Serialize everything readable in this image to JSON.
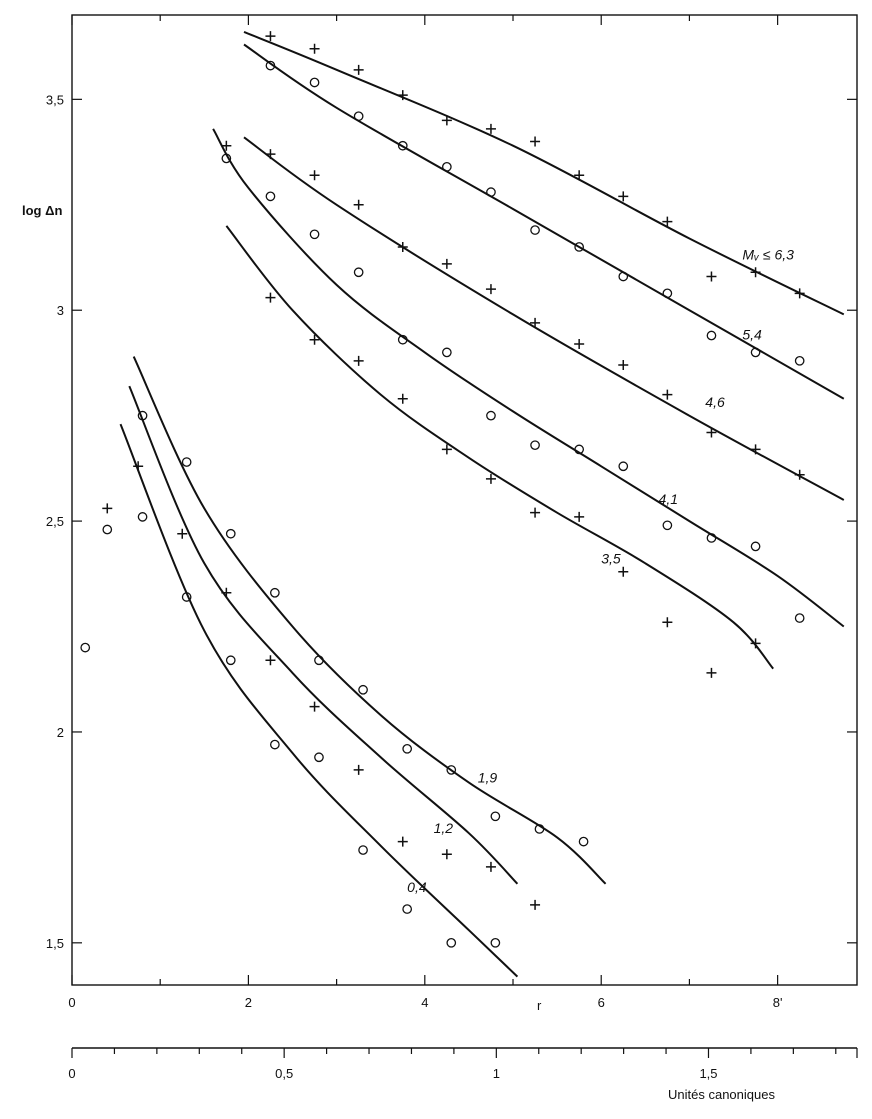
{
  "chart_data": {
    "type": "scatter",
    "title": "",
    "ylabel": "log Δn",
    "xlabel": "r",
    "secondary_xlabel": "Unités canoniques",
    "xlim": [
      0,
      8.9
    ],
    "ylim": [
      1.4,
      3.7
    ],
    "grid": false,
    "x_ticks": [
      {
        "value": 0,
        "label": "0"
      },
      {
        "value": 2,
        "label": "2"
      },
      {
        "value": 4,
        "label": "4"
      },
      {
        "value": 6,
        "label": "6"
      },
      {
        "value": 8,
        "label": "8'"
      }
    ],
    "y_ticks": [
      {
        "value": 1.5,
        "label": "1,5"
      },
      {
        "value": 2,
        "label": "2"
      },
      {
        "value": 2.5,
        "label": "2,5"
      },
      {
        "value": 3,
        "label": "3"
      },
      {
        "value": 3.5,
        "label": "3,5"
      }
    ],
    "secondary_axis": {
      "lim": [
        0,
        1.85
      ],
      "ticks": [
        {
          "value": 0,
          "label": "0"
        },
        {
          "value": 0.5,
          "label": "0,5"
        },
        {
          "value": 1,
          "label": "1"
        },
        {
          "value": 1.5,
          "label": "1,5"
        }
      ]
    },
    "series": [
      {
        "name": "",
        "label_text": "Mᵥ ≤ 6,3",
        "label_at": [
          7.6,
          3.12
        ],
        "marker": "plus",
        "curve": [
          [
            1.95,
            3.66
          ],
          [
            3,
            3.57
          ],
          [
            5,
            3.39
          ],
          [
            7,
            3.17
          ],
          [
            8.75,
            2.99
          ]
        ],
        "points": [
          [
            2.25,
            3.65
          ],
          [
            2.75,
            3.62
          ],
          [
            3.25,
            3.57
          ],
          [
            3.75,
            3.51
          ],
          [
            4.25,
            3.45
          ],
          [
            4.75,
            3.43
          ],
          [
            5.25,
            3.4
          ],
          [
            5.75,
            3.32
          ],
          [
            6.25,
            3.27
          ],
          [
            6.75,
            3.21
          ],
          [
            7.25,
            3.08
          ],
          [
            7.75,
            3.09
          ],
          [
            8.25,
            3.04
          ]
        ]
      },
      {
        "name": "",
        "label_text": "5,4",
        "label_at": [
          7.6,
          2.93
        ],
        "marker": "circle",
        "curve": [
          [
            1.95,
            3.63
          ],
          [
            3,
            3.48
          ],
          [
            5,
            3.24
          ],
          [
            7,
            3.0
          ],
          [
            8.75,
            2.79
          ]
        ],
        "points": [
          [
            2.25,
            3.58
          ],
          [
            2.75,
            3.54
          ],
          [
            3.25,
            3.46
          ],
          [
            3.75,
            3.39
          ],
          [
            4.25,
            3.34
          ],
          [
            4.75,
            3.28
          ],
          [
            5.25,
            3.19
          ],
          [
            5.75,
            3.15
          ],
          [
            6.25,
            3.08
          ],
          [
            6.75,
            3.04
          ],
          [
            7.25,
            2.94
          ],
          [
            7.75,
            2.9
          ],
          [
            8.25,
            2.88
          ]
        ]
      },
      {
        "name": "",
        "label_text": "4,6",
        "label_at": [
          7.18,
          2.77
        ],
        "marker": "plus",
        "curve": [
          [
            1.95,
            3.41
          ],
          [
            3,
            3.25
          ],
          [
            5,
            2.99
          ],
          [
            7,
            2.75
          ],
          [
            8.75,
            2.55
          ]
        ],
        "points": [
          [
            1.75,
            3.39
          ],
          [
            2.25,
            3.37
          ],
          [
            2.75,
            3.32
          ],
          [
            3.25,
            3.25
          ],
          [
            3.75,
            3.15
          ],
          [
            4.25,
            3.11
          ],
          [
            4.75,
            3.05
          ],
          [
            5.25,
            2.97
          ],
          [
            5.75,
            2.92
          ],
          [
            6.25,
            2.87
          ],
          [
            6.75,
            2.8
          ],
          [
            7.25,
            2.71
          ],
          [
            7.75,
            2.67
          ],
          [
            8.25,
            2.61
          ]
        ]
      },
      {
        "name": "",
        "label_text": "4,1",
        "label_at": [
          6.65,
          2.54
        ],
        "marker": "circle",
        "curve": [
          [
            1.6,
            3.43
          ],
          [
            2,
            3.29
          ],
          [
            3,
            3.06
          ],
          [
            4,
            2.9
          ],
          [
            5,
            2.76
          ],
          [
            6,
            2.63
          ],
          [
            7,
            2.5
          ],
          [
            8,
            2.37
          ],
          [
            8.75,
            2.25
          ]
        ],
        "points": [
          [
            1.75,
            3.36
          ],
          [
            2.25,
            3.27
          ],
          [
            2.75,
            3.18
          ],
          [
            3.25,
            3.09
          ],
          [
            3.75,
            2.93
          ],
          [
            4.25,
            2.9
          ],
          [
            4.75,
            2.75
          ],
          [
            5.25,
            2.68
          ],
          [
            5.75,
            2.67
          ],
          [
            6.25,
            2.63
          ],
          [
            6.75,
            2.49
          ],
          [
            7.25,
            2.46
          ],
          [
            7.75,
            2.44
          ],
          [
            8.25,
            2.27
          ]
        ]
      },
      {
        "name": "",
        "label_text": "3,5",
        "label_at": [
          6.0,
          2.4
        ],
        "marker": "plus",
        "curve": [
          [
            1.75,
            3.2
          ],
          [
            2.5,
            3.0
          ],
          [
            3.5,
            2.8
          ],
          [
            4.5,
            2.65
          ],
          [
            5.5,
            2.52
          ],
          [
            6.5,
            2.4
          ],
          [
            7.5,
            2.26
          ],
          [
            7.95,
            2.15
          ]
        ],
        "points": [
          [
            2.25,
            3.03
          ],
          [
            2.75,
            2.93
          ],
          [
            3.25,
            2.88
          ],
          [
            3.75,
            2.79
          ],
          [
            4.25,
            2.67
          ],
          [
            4.75,
            2.6
          ],
          [
            5.25,
            2.52
          ],
          [
            5.75,
            2.51
          ],
          [
            6.25,
            2.38
          ],
          [
            6.75,
            2.26
          ],
          [
            7.25,
            2.14
          ],
          [
            7.75,
            2.21
          ]
        ]
      },
      {
        "name": "",
        "label_text": "1,9",
        "label_at": [
          4.6,
          1.88
        ],
        "marker": "circle",
        "curve": [
          [
            0.7,
            2.89
          ],
          [
            1.5,
            2.53
          ],
          [
            2.5,
            2.25
          ],
          [
            3.5,
            2.04
          ],
          [
            4.5,
            1.88
          ],
          [
            5.5,
            1.75
          ],
          [
            6.05,
            1.64
          ]
        ],
        "points": [
          [
            0.8,
            2.75
          ],
          [
            1.3,
            2.64
          ],
          [
            1.8,
            2.47
          ],
          [
            2.3,
            2.33
          ],
          [
            2.8,
            2.17
          ],
          [
            3.3,
            2.1
          ],
          [
            3.8,
            1.96
          ],
          [
            4.3,
            1.91
          ],
          [
            4.8,
            1.8
          ],
          [
            5.3,
            1.77
          ],
          [
            5.8,
            1.74
          ]
        ]
      },
      {
        "name": "",
        "label_text": "1,2",
        "label_at": [
          4.1,
          1.76
        ],
        "marker": "plus",
        "curve": [
          [
            0.65,
            2.82
          ],
          [
            1.5,
            2.4
          ],
          [
            2.5,
            2.14
          ],
          [
            3.5,
            1.94
          ],
          [
            4.5,
            1.76
          ],
          [
            5.05,
            1.64
          ]
        ],
        "points": [
          [
            0.75,
            2.63
          ],
          [
            1.25,
            2.47
          ],
          [
            1.75,
            2.33
          ],
          [
            2.25,
            2.17
          ],
          [
            2.75,
            2.06
          ],
          [
            3.25,
            1.91
          ],
          [
            3.75,
            1.74
          ],
          [
            4.25,
            1.71
          ],
          [
            4.75,
            1.68
          ],
          [
            5.25,
            1.59
          ]
        ]
      },
      {
        "name": "",
        "label_text": "0,4",
        "label_at": [
          3.8,
          1.62
        ],
        "marker": "circle",
        "curve": [
          [
            0.55,
            2.73
          ],
          [
            1.5,
            2.24
          ],
          [
            2.5,
            1.95
          ],
          [
            3.5,
            1.73
          ],
          [
            4.5,
            1.53
          ],
          [
            5.05,
            1.42
          ]
        ],
        "points": [
          [
            0.8,
            2.51
          ],
          [
            1.3,
            2.32
          ],
          [
            1.8,
            2.17
          ],
          [
            2.3,
            1.97
          ],
          [
            2.8,
            1.94
          ],
          [
            3.3,
            1.72
          ],
          [
            3.8,
            1.58
          ],
          [
            4.3,
            1.5
          ],
          [
            4.8,
            1.5
          ]
        ]
      }
    ],
    "extra_points": [
      {
        "marker": "circle",
        "x": 0.15,
        "y": 2.2
      },
      {
        "marker": "circle",
        "x": 0.4,
        "y": 2.48
      },
      {
        "marker": "plus",
        "x": 0.4,
        "y": 2.53
      }
    ]
  }
}
